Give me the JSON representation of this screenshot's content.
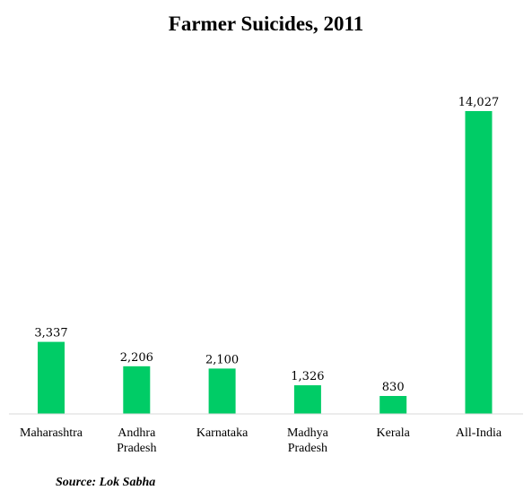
{
  "chart_data": {
    "type": "bar",
    "title": "Farmer Suicides, 2011",
    "categories": [
      "Maharashtra",
      "Andhra Pradesh",
      "Karnataka",
      "Madhya Pradesh",
      "Kerala",
      "All-India"
    ],
    "category_lines": [
      [
        "Maharashtra"
      ],
      [
        "Andhra",
        "Pradesh"
      ],
      [
        "Karnataka"
      ],
      [
        "Madhya",
        "Pradesh"
      ],
      [
        "Kerala"
      ],
      [
        "All-India"
      ]
    ],
    "values": [
      3337,
      2206,
      2100,
      1326,
      830,
      14027
    ],
    "value_labels": [
      "3,337",
      "2,206",
      "2,100",
      "1,326",
      "830",
      "14,027"
    ],
    "bar_color": "#00cc66",
    "ylim": [
      0,
      14027
    ],
    "grid": false,
    "source": "Source: Lok Sabha"
  }
}
